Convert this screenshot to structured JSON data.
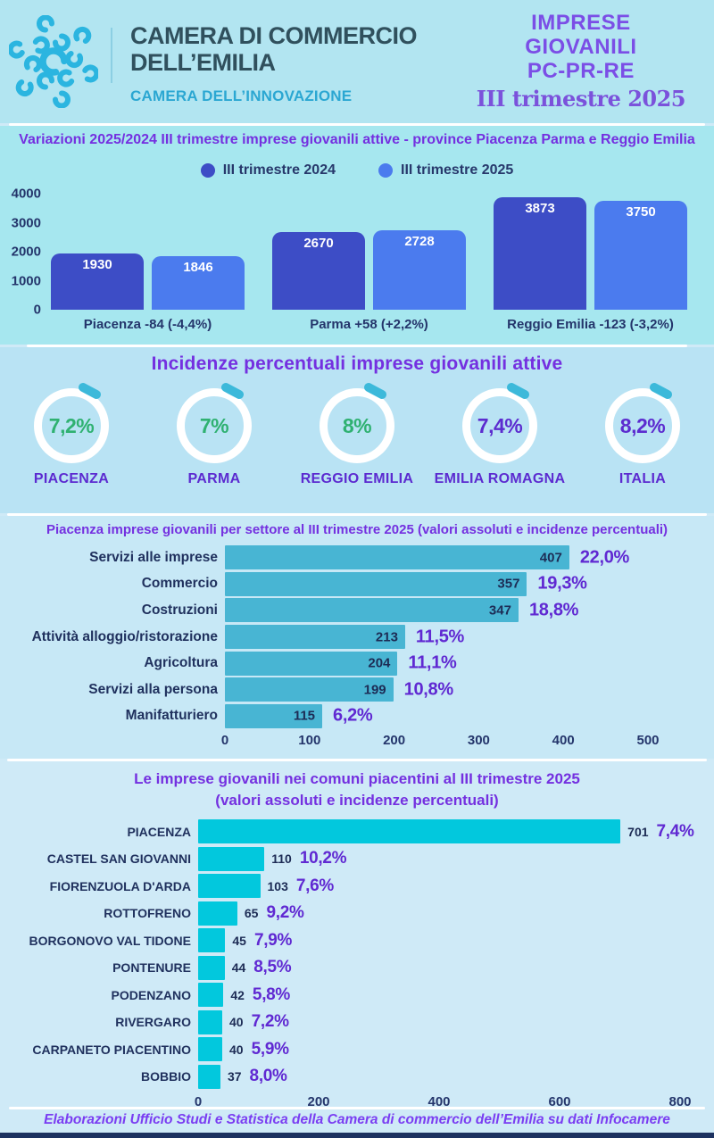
{
  "header": {
    "org_name_line1": "CAMERA DI COMMERCIO",
    "org_name_line2": "DELL’EMILIA",
    "org_subtitle": "CAMERA DELL’INNOVAZIONE",
    "report_title_line1": "IMPRESE",
    "report_title_line2": "GIOVANILI",
    "report_title_line3": "PC-PR-RE",
    "report_subtitle": "III trimestre 2025",
    "logo_color": "#2bb5e0"
  },
  "chart_data": [
    {
      "id": "variazioni",
      "type": "bar",
      "title": "Variazioni 2025/2024 III trimestre imprese giovanili attive - province Piacenza Parma e Reggio Emilia",
      "categories": [
        "Piacenza -84 (-4,4%)",
        "Parma +58 (+2,2%)",
        "Reggio Emilia -123 (-3,2%)"
      ],
      "series": [
        {
          "name": "III trimestre 2024",
          "color": "#3d4dc6",
          "values": [
            1930,
            2670,
            3873
          ]
        },
        {
          "name": "III trimestre 2025",
          "color": "#4b7bee",
          "values": [
            1846,
            2728,
            3750
          ]
        }
      ],
      "ylim": [
        0,
        4000
      ],
      "yticks": [
        0,
        1000,
        2000,
        3000,
        4000
      ],
      "legend_position": "top",
      "grid": false
    },
    {
      "id": "incidenze",
      "type": "gauge-set",
      "title": "Incidenze percentuali imprese giovanili attive",
      "ring_color": "#ffffff",
      "dash_color": "#3cb9da",
      "items": [
        {
          "label": "PIACENZA",
          "value": "7,2%",
          "value_num": 7.2,
          "value_color": "#2fb171"
        },
        {
          "label": "PARMA",
          "value": "7%",
          "value_num": 7.0,
          "value_color": "#2fb171"
        },
        {
          "label": "REGGIO EMILIA",
          "value": "8%",
          "value_num": 8.0,
          "value_color": "#2fb171"
        },
        {
          "label": "EMILIA ROMAGNA",
          "value": "7,4%",
          "value_num": 7.4,
          "value_color": "#5c2ccf"
        },
        {
          "label": "ITALIA",
          "value": "8,2%",
          "value_num": 8.2,
          "value_color": "#5c2ccf"
        }
      ]
    },
    {
      "id": "settori",
      "type": "bar",
      "orientation": "horizontal",
      "title": "Piacenza imprese giovanili per settore al III trimestre  2025 (valori assoluti e incidenze percentuali)",
      "categories": [
        "Servizi alle imprese",
        "Commercio",
        "Costruzioni",
        "Attività alloggio/ristorazione",
        "Agricoltura",
        "Servizi alla persona",
        "Manifatturiero"
      ],
      "values": [
        407,
        357,
        347,
        213,
        204,
        199,
        115
      ],
      "pct_labels": [
        "22,0%",
        "19,3%",
        "18,8%",
        "11,5%",
        "11,1%",
        "10,8%",
        "6,2%"
      ],
      "xlim": [
        0,
        500
      ],
      "xticks": [
        0,
        100,
        200,
        300,
        400,
        500
      ],
      "bar_color": "#48b5d3",
      "value_label_position": "inside",
      "grid": false
    },
    {
      "id": "comuni",
      "type": "bar",
      "orientation": "horizontal",
      "title": "Le imprese giovanili nei comuni piacentini al III trimestre 2025",
      "subtitle": "(valori assoluti e incidenze percentuali)",
      "categories": [
        "PIACENZA",
        "CASTEL SAN GIOVANNI",
        "FIORENZUOLA D'ARDA",
        "ROTTOFRENO",
        "BORGONOVO VAL TIDONE",
        "PONTENURE",
        "PODENZANO",
        "RIVERGARO",
        "CARPANETO PIACENTINO",
        "BOBBIO"
      ],
      "values": [
        701,
        110,
        103,
        65,
        45,
        44,
        42,
        40,
        40,
        37
      ],
      "pct_labels": [
        "7,4%",
        "10,2%",
        "7,6%",
        "9,2%",
        "7,9%",
        "8,5%",
        "5,8%",
        "7,2%",
        "5,9%",
        "8,0%"
      ],
      "xlim": [
        0,
        800
      ],
      "xticks": [
        0,
        200,
        400,
        600,
        800
      ],
      "bar_color": "#02c8dd",
      "value_label_position": "outside",
      "grid": false
    }
  ],
  "footer": {
    "text": "Elaborazioni Ufficio Studi e Statistica della Camera di commercio dell’Emilia su dati Infocamere"
  }
}
